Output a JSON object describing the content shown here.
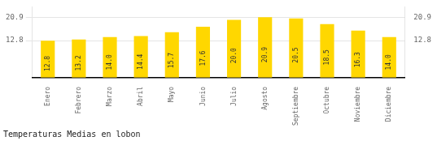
{
  "chart_data": {
    "type": "bar",
    "title": "Temperaturas Medias en lobon",
    "categories": [
      "Enero",
      "Febrero",
      "Marzo",
      "Abril",
      "Mayo",
      "Junio",
      "Julio",
      "Agosto",
      "Septiembre",
      "Octubre",
      "Noviembre",
      "Diciembre"
    ],
    "values": [
      12.8,
      13.2,
      14.0,
      14.4,
      15.7,
      17.6,
      20.0,
      20.9,
      20.5,
      18.5,
      16.3,
      14.0
    ],
    "value_labels": [
      "12.8",
      "13.2",
      "14.0",
      "14.4",
      "15.7",
      "17.6",
      "20.0",
      "20.9",
      "20.5",
      "18.5",
      "16.3",
      "14.0"
    ],
    "data_labels": true,
    "color": "#FFD700",
    "ylim": [
      0,
      24.5
    ],
    "yticks": [
      12.8,
      20.9
    ],
    "y2lim": [
      0,
      24.5
    ],
    "y2ticks": [
      12.8,
      20.9
    ],
    "grid": true
  }
}
